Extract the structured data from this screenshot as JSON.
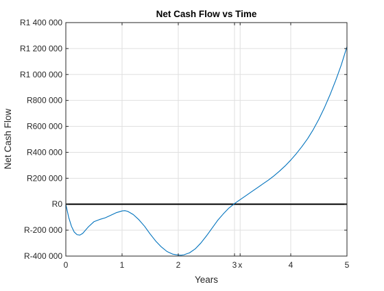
{
  "colors": {
    "line": "#0072BD",
    "zero_line": "#000000",
    "grid": "#dfdfdf",
    "axis": "#262626",
    "background": "#ffffff"
  },
  "chart_data": {
    "type": "line",
    "title": "Net Cash Flow vs Time",
    "xlabel": "Years",
    "ylabel": "Net Cash Flow",
    "xlim": [
      0,
      5
    ],
    "ylim": [
      -400000,
      1400000
    ],
    "grid": true,
    "x_ticks": [
      {
        "value": 0,
        "label": "0"
      },
      {
        "value": 1,
        "label": "1"
      },
      {
        "value": 2,
        "label": "2"
      },
      {
        "value": 3,
        "label": "3"
      },
      {
        "value": 3.1,
        "label": "x"
      },
      {
        "value": 4,
        "label": "4"
      },
      {
        "value": 5,
        "label": "5"
      }
    ],
    "y_ticks": [
      {
        "value": 1400000,
        "label": "R1 400 000"
      },
      {
        "value": 1200000,
        "label": "R1 200 000"
      },
      {
        "value": 1000000,
        "label": "R1 000 000"
      },
      {
        "value": 800000,
        "label": "R800 000"
      },
      {
        "value": 600000,
        "label": "R600 000"
      },
      {
        "value": 400000,
        "label": "R400 000"
      },
      {
        "value": 200000,
        "label": "R200 000"
      },
      {
        "value": 0,
        "label": "R0"
      },
      {
        "value": -200000,
        "label": "R-200 000"
      },
      {
        "value": -400000,
        "label": "R-400 000"
      }
    ],
    "reference_lines": [
      {
        "axis": "y",
        "value": 0
      }
    ],
    "series": [
      {
        "x": [
          0,
          0.05,
          0.1,
          0.15,
          0.2,
          0.25,
          0.3,
          0.4,
          0.5,
          0.6,
          0.7,
          0.8,
          0.9,
          1.0,
          1.05,
          1.1,
          1.2,
          1.3,
          1.4,
          1.5,
          1.6,
          1.7,
          1.8,
          1.9,
          2.0,
          2.05,
          2.1,
          2.2,
          2.3,
          2.4,
          2.5,
          2.6,
          2.7,
          2.8,
          2.9,
          3.0,
          3.1,
          3.2,
          3.3,
          3.4,
          3.5,
          3.6,
          3.7,
          3.8,
          3.9,
          4.0,
          4.1,
          4.2,
          4.3,
          4.4,
          4.5,
          4.6,
          4.7,
          4.8,
          4.9,
          5.0
        ],
        "y": [
          0,
          -100000,
          -170000,
          -215000,
          -235000,
          -238000,
          -225000,
          -175000,
          -135000,
          -118000,
          -105000,
          -85000,
          -65000,
          -52000,
          -50000,
          -55000,
          -80000,
          -120000,
          -170000,
          -230000,
          -285000,
          -330000,
          -365000,
          -385000,
          -392000,
          -393000,
          -390000,
          -375000,
          -345000,
          -300000,
          -245000,
          -185000,
          -125000,
          -75000,
          -30000,
          5000,
          35000,
          65000,
          95000,
          125000,
          155000,
          185000,
          218000,
          255000,
          295000,
          340000,
          390000,
          445000,
          505000,
          575000,
          655000,
          745000,
          845000,
          955000,
          1075000,
          1215000
        ]
      }
    ]
  }
}
